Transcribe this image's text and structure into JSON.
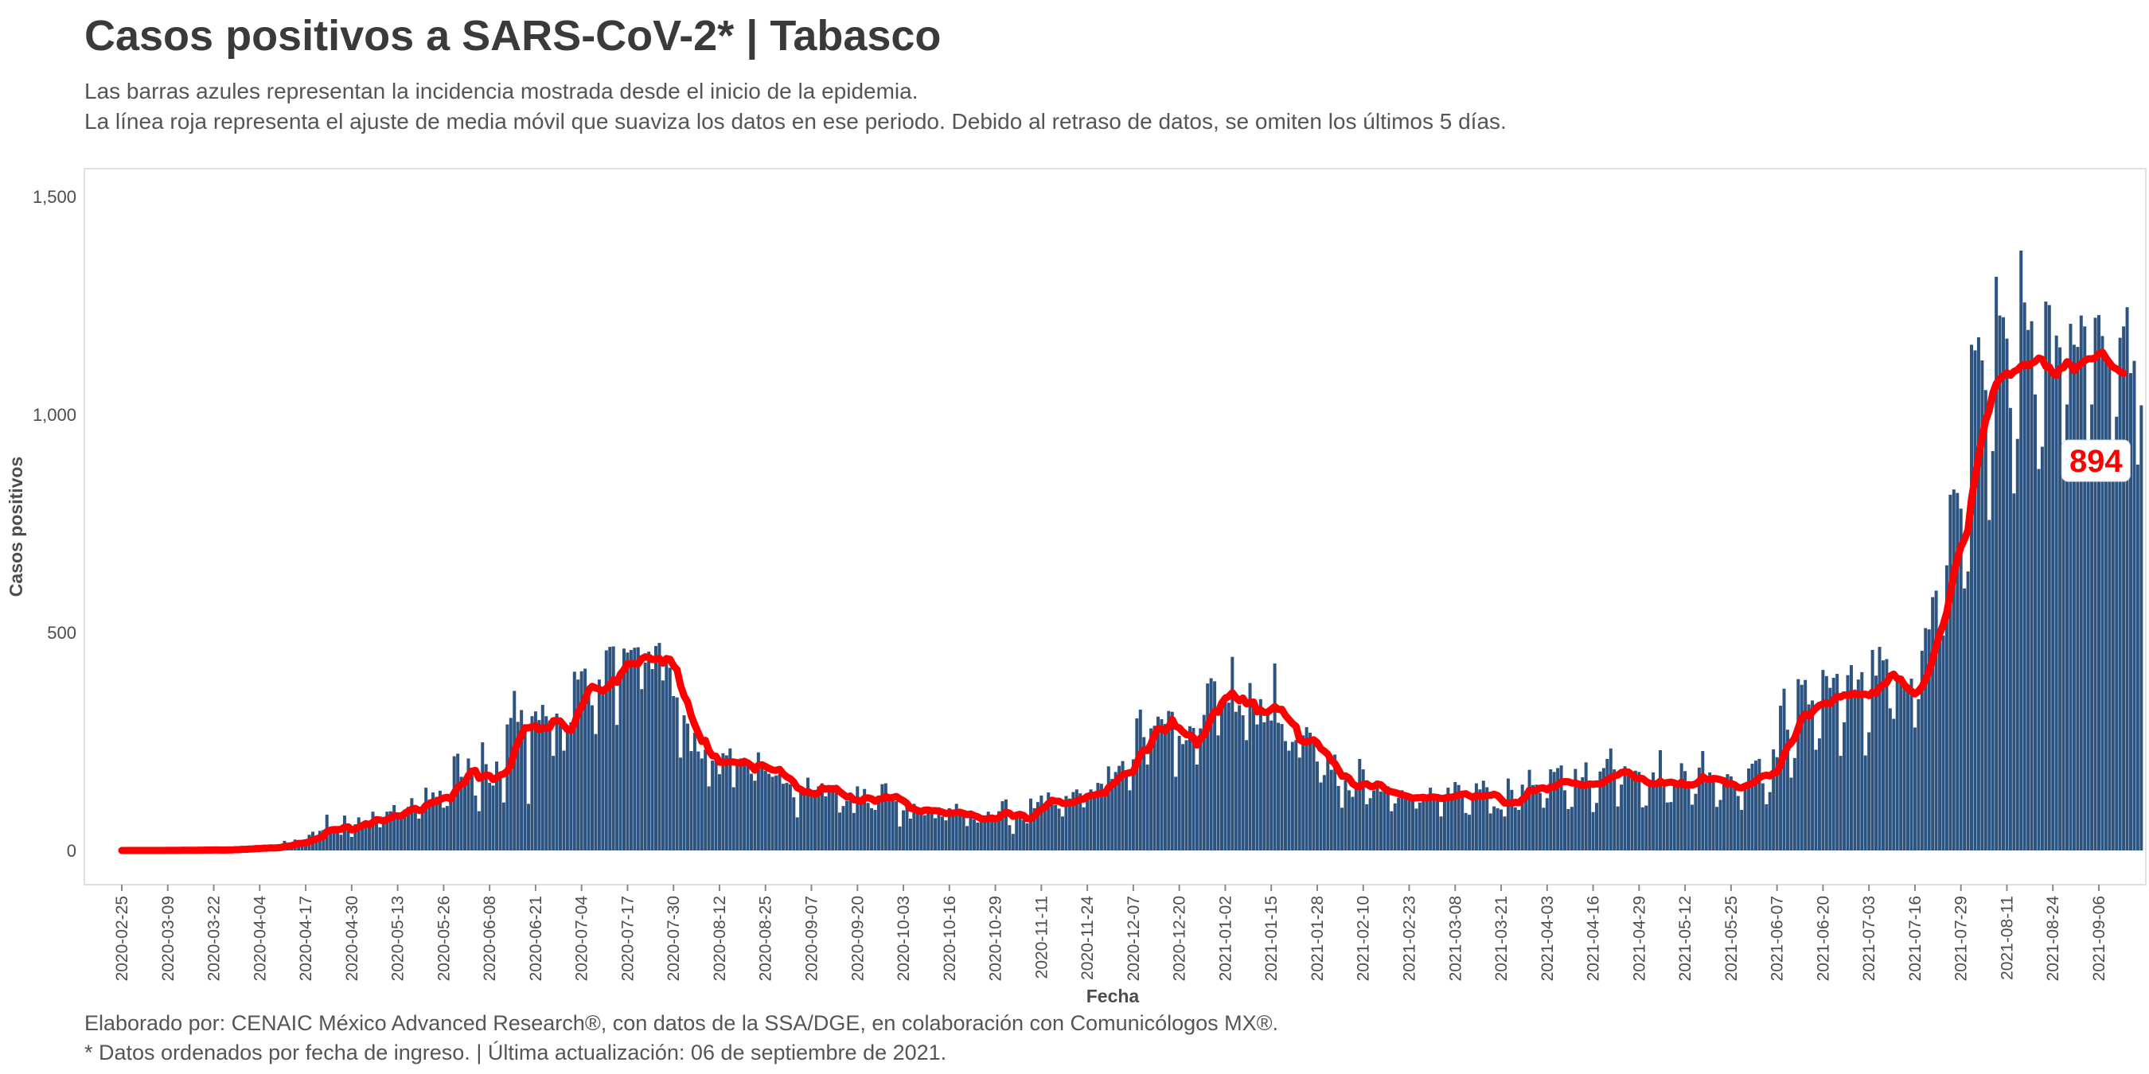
{
  "header": {
    "title": "Casos positivos a SARS-CoV-2* | Tabasco",
    "subtitle_line1": "Las barras azules representan la incidencia mostrada desde el inicio de la epidemia.",
    "subtitle_line2": "La línea roja representa el ajuste de media móvil que suaviza los datos en ese periodo. Debido al retraso de datos, se omiten los últimos 5 días."
  },
  "footer": {
    "caption_line1": "Elaborado por: CENAIC México Advanced Research®, con datos de la SSA/DGE, en colaboración con Comunicólogos MX®.",
    "caption_line2": "* Datos ordenados por fecha de ingreso. | Última actualización: 06 de septiembre de 2021."
  },
  "colors": {
    "bars": "#2d5480",
    "moving_average": "#ff0000",
    "panel_border": "#e0e0e0",
    "axis_text": "#4d4d4d"
  },
  "chart_data": {
    "type": "bar",
    "start_date": "2020-02-25",
    "end_date": "2021-08-31",
    "xlabel": "Fecha",
    "ylabel": "Casos positivos",
    "ylim": [
      -75,
      1560
    ],
    "y_ticks": [
      0,
      500,
      1000,
      1500
    ],
    "y_tick_labels": [
      "0",
      "500",
      "1,000",
      "1,500"
    ],
    "x_tick_labels": [
      "2020-02-25",
      "2020-03-09",
      "2020-03-22",
      "2020-04-04",
      "2020-04-17",
      "2020-04-30",
      "2020-05-13",
      "2020-05-26",
      "2020-06-08",
      "2020-06-21",
      "2020-07-04",
      "2020-07-17",
      "2020-07-30",
      "2020-08-12",
      "2020-08-25",
      "2020-09-07",
      "2020-09-20",
      "2020-10-03",
      "2020-10-16",
      "2020-10-29",
      "2020-11-11",
      "2020-11-24",
      "2020-12-07",
      "2020-12-20",
      "2021-01-02",
      "2021-01-15",
      "2021-01-28",
      "2021-02-10",
      "2021-02-23",
      "2021-03-08",
      "2021-03-21",
      "2021-04-03",
      "2021-04-16",
      "2021-04-29",
      "2021-05-12",
      "2021-05-25",
      "2021-06-07",
      "2021-06-20",
      "2021-07-03",
      "2021-07-16",
      "2021-07-29",
      "2021-08-11",
      "2021-08-24",
      "2021-09-06"
    ],
    "series": [
      {
        "type": "bar",
        "values_daily_from_start_date": [
          0,
          0,
          0,
          0,
          0,
          0,
          0,
          0,
          0,
          0,
          0,
          0,
          0,
          1,
          0,
          0,
          1,
          1,
          0,
          0,
          1,
          1,
          1,
          1,
          2,
          1,
          1,
          1,
          0,
          1,
          2,
          2,
          5,
          2,
          5,
          1,
          5,
          4,
          8,
          6,
          7,
          5,
          7,
          3,
          7,
          13,
          22,
          13,
          11,
          25,
          22,
          9,
          22,
          36,
          43,
          28,
          45,
          47,
          82,
          46,
          45,
          40,
          36,
          80,
          51,
          31,
          60,
          76,
          65,
          68,
          63,
          89,
          75,
          53,
          61,
          89,
          90,
          104,
          83,
          71,
          94,
          100,
          120,
          103,
          73,
          90,
          144,
          117,
          133,
          123,
          137,
          98,
          102,
          116,
          216,
          222,
          169,
          168,
          211,
          172,
          126,
          90,
          248,
          198,
          155,
          149,
          204,
          166,
          110,
          289,
          304,
          366,
          295,
          322,
          285,
          107,
          308,
          319,
          299,
          334,
          308,
          298,
          217,
          314,
          305,
          229,
          270,
          294,
          410,
          392,
          411,
          417,
          378,
          333,
          267,
          392,
          357,
          459,
          467,
          468,
          288,
          400,
          463,
          454,
          460,
          465,
          466,
          370,
          431,
          456,
          416,
          469,
          476,
          390,
          443,
          419,
          354,
          351,
          213,
          310,
          291,
          228,
          270,
          227,
          211,
          231,
          147,
          206,
          220,
          175,
          223,
          218,
          234,
          145,
          195,
          211,
          206,
          196,
          176,
          160,
          225,
          202,
          183,
          176,
          169,
          172,
          175,
          153,
          155,
          152,
          122,
          76,
          147,
          129,
          167,
          123,
          139,
          147,
          154,
          124,
          142,
          150,
          141,
          87,
          102,
          114,
          133,
          86,
          147,
          116,
          141,
          109,
          97,
          93,
          122,
          152,
          154,
          115,
          118,
          113,
          55,
          92,
          110,
          73,
          107,
          92,
          94,
          81,
          93,
          98,
          74,
          99,
          78,
          69,
          97,
          83,
          107,
          82,
          80,
          56,
          81,
          71,
          64,
          75,
          76,
          89,
          66,
          65,
          90,
          113,
          117,
          58,
          38,
          87,
          77,
          70,
          62,
          119,
          97,
          111,
          126,
          108,
          133,
          112,
          104,
          96,
          78,
          125,
          119,
          134,
          140,
          131,
          99,
          120,
          140,
          124,
          155,
          153,
          126,
          193,
          164,
          180,
          194,
          205,
          174,
          138,
          209,
          303,
          323,
          260,
          197,
          280,
          286,
          307,
          301,
          290,
          320,
          318,
          169,
          263,
          244,
          253,
          285,
          281,
          197,
          280,
          311,
          383,
          395,
          388,
          264,
          345,
          358,
          339,
          444,
          318,
          333,
          310,
          253,
          384,
          340,
          289,
          347,
          294,
          314,
          298,
          429,
          293,
          290,
          251,
          229,
          249,
          253,
          213,
          264,
          283,
          270,
          245,
          204,
          156,
          173,
          212,
          185,
          220,
          148,
          98,
          162,
          138,
          123,
          146,
          210,
          186,
          106,
          120,
          138,
          160,
          135,
          152,
          147,
          90,
          108,
          121,
          138,
          124,
          131,
          128,
          96,
          110,
          127,
          123,
          144,
          129,
          123,
          78,
          115,
          144,
          123,
          157,
          150,
          136,
          86,
          82,
          118,
          154,
          140,
          160,
          145,
          85,
          101,
          97,
          94,
          78,
          165,
          139,
          99,
          93,
          151,
          137,
          185,
          150,
          151,
          132,
          98,
          120,
          186,
          180,
          189,
          195,
          138,
          95,
          100,
          187,
          160,
          168,
          202,
          156,
          88,
          109,
          181,
          189,
          210,
          234,
          186,
          101,
          151,
          193,
          183,
          166,
          183,
          180,
          99,
          103,
          162,
          179,
          160,
          230,
          146,
          110,
          111,
          148,
          152,
          200,
          182,
          152,
          105,
          130,
          190,
          228,
          155,
          179,
          169,
          100,
          116,
          168,
          175,
          170,
          157,
          125,
          93,
          146,
          188,
          199,
          206,
          210,
          154,
          106,
          134,
          232,
          214,
          332,
          371,
          277,
          167,
          212,
          393,
          380,
          391,
          335,
          344,
          231,
          257,
          414,
          400,
          373,
          396,
          405,
          217,
          294,
          402,
          425,
          369,
          392,
          409,
          218,
          271,
          460,
          401,
          467,
          436,
          439,
          326,
          302,
          388,
          393,
          375,
          379,
          394,
          282,
          347,
          458,
          510,
          507,
          581,
          596,
          481,
          493,
          654,
          816,
          828,
          820,
          784,
          601,
          640,
          1160,
          1147,
          1177,
          1124,
          1056,
          758,
          916,
          1316,
          1227,
          1223,
          1174,
          1015,
          819,
          944,
          1376,
          1257,
          1194,
          1214,
          1046,
          875,
          926,
          1259,
          1251,
          1089,
          1181,
          1154,
          890,
          1023,
          1208,
          1160,
          1155,
          1227,
          1202,
          919,
          1023,
          1222,
          1228,
          1180,
          1136,
          1122,
          849,
          995,
          1176,
          1202,
          1246,
          1095,
          1123,
          885,
          1021
        ],
        "reading_note": ""
      },
      {
        "type": "line",
        "end_label": "894"
      }
    ]
  }
}
